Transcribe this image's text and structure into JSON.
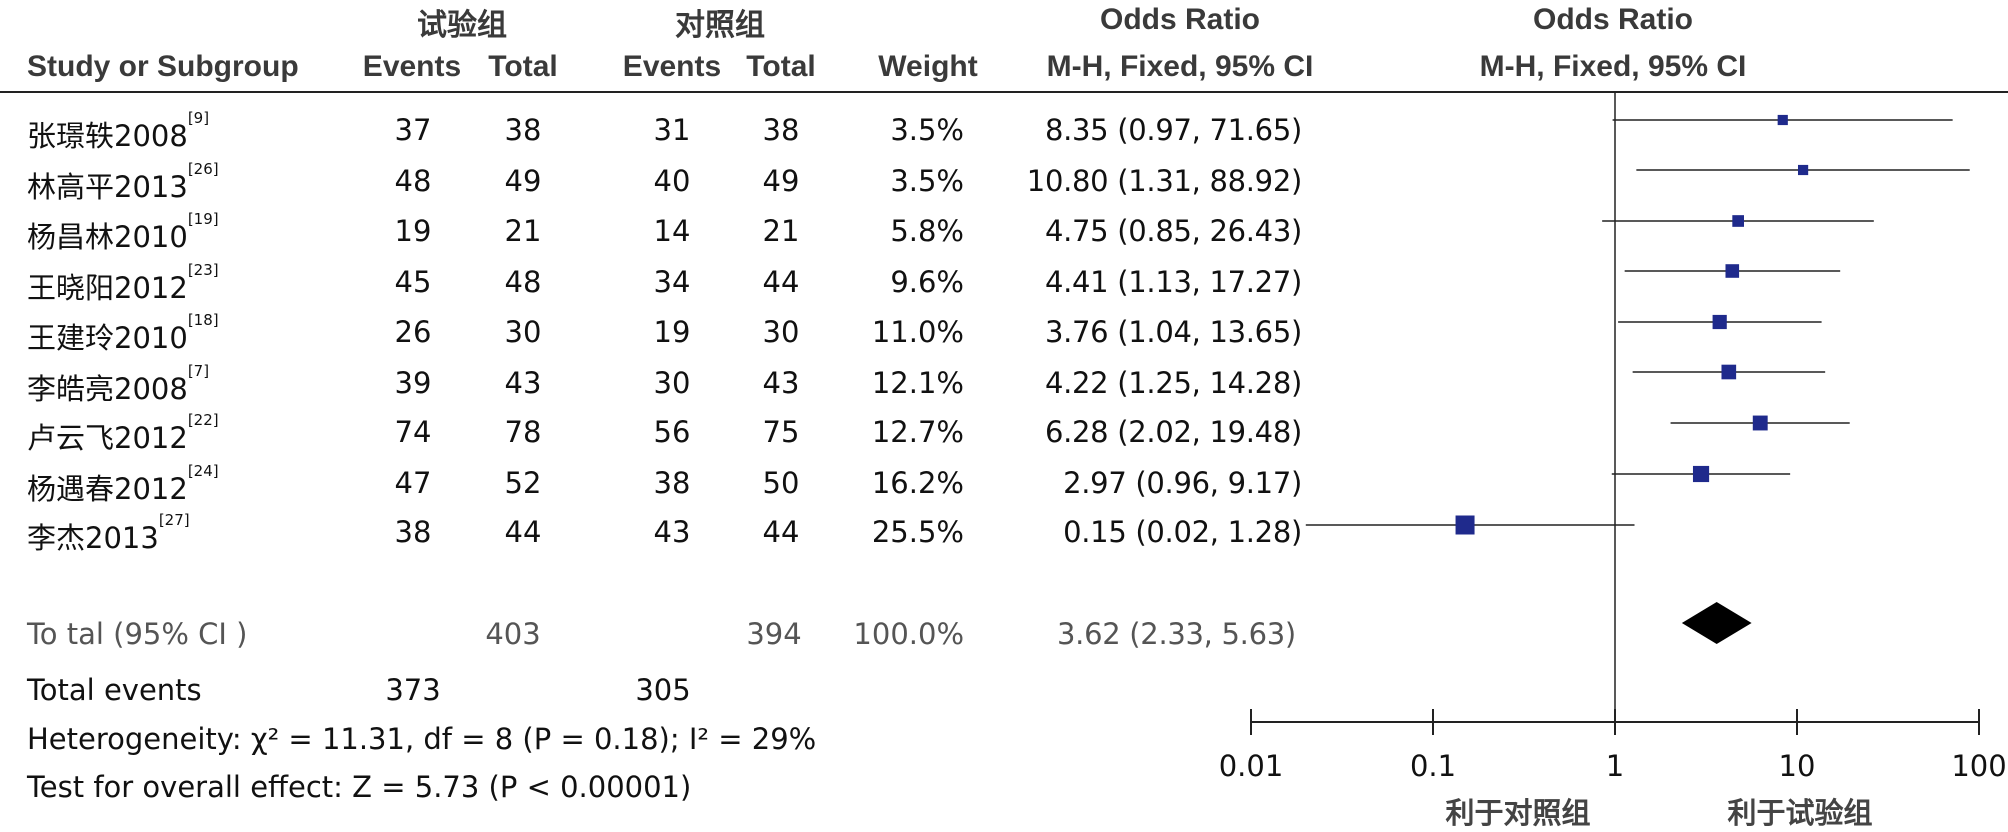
{
  "headers": {
    "group_exp": "试验组",
    "group_ctrl": "对照组",
    "study": "Study or Subgroup",
    "events": "Events",
    "total": "Total",
    "weight": "Weight",
    "or_title": "Odds Ratio",
    "or_method": "M-H, Fixed, 95% CI"
  },
  "studies": [
    {
      "name": "张璟轶2008",
      "ref": "[9]",
      "exp_events": "37",
      "exp_total": "38",
      "ctrl_events": "31",
      "ctrl_total": "38",
      "weight": "3.5%",
      "ci_text": "8.35 (0.97, 71.65)"
    },
    {
      "name": "林高平2013",
      "ref": "[26]",
      "exp_events": "48",
      "exp_total": "49",
      "ctrl_events": "40",
      "ctrl_total": "49",
      "weight": "3.5%",
      "ci_text": "10.80 (1.31, 88.92)"
    },
    {
      "name": "杨昌林2010",
      "ref": "[19]",
      "exp_events": "19",
      "exp_total": "21",
      "ctrl_events": "14",
      "ctrl_total": "21",
      "weight": "5.8%",
      "ci_text": "4.75 (0.85, 26.43)"
    },
    {
      "name": "王晓阳2012",
      "ref": "[23]",
      "exp_events": "45",
      "exp_total": "48",
      "ctrl_events": "34",
      "ctrl_total": "44",
      "weight": "9.6%",
      "ci_text": "4.41 (1.13, 17.27)"
    },
    {
      "name": "王建玲2010",
      "ref": "[18]",
      "exp_events": "26",
      "exp_total": "30",
      "ctrl_events": "19",
      "ctrl_total": "30",
      "weight": "11.0%",
      "ci_text": "3.76 (1.04, 13.65)"
    },
    {
      "name": "李皓亮2008",
      "ref": "[7]",
      "exp_events": "39",
      "exp_total": "43",
      "ctrl_events": "30",
      "ctrl_total": "43",
      "weight": "12.1%",
      "ci_text": "4.22 (1.25, 14.28)"
    },
    {
      "name": "卢云飞2012",
      "ref": "[22]",
      "exp_events": "74",
      "exp_total": "78",
      "ctrl_events": "56",
      "ctrl_total": "75",
      "weight": "12.7%",
      "ci_text": "6.28 (2.02, 19.48)"
    },
    {
      "name": "杨遇春2012",
      "ref": "[24]",
      "exp_events": "47",
      "exp_total": "52",
      "ctrl_events": "38",
      "ctrl_total": "50",
      "weight": "16.2%",
      "ci_text": "2.97 (0.96, 9.17)"
    },
    {
      "name": "李杰2013",
      "ref": "[27]",
      "exp_events": "38",
      "exp_total": "44",
      "ctrl_events": "43",
      "ctrl_total": "44",
      "weight": "25.5%",
      "ci_text": "0.15 (0.02, 1.28)"
    }
  ],
  "total": {
    "label": "To tal (95% CI )",
    "exp_total": "403",
    "ctrl_total": "394",
    "weight": "100.0%",
    "ci_text": "3.62 (2.33, 5.63)"
  },
  "total_events": {
    "label": "Total events",
    "exp": "373",
    "ctrl": "305"
  },
  "heterogeneity": "Heterogeneity: χ² = 11.31, df = 8 (P = 0.18); I² = 29%",
  "overall_effect": "Test for overall effect: Z = 5.73 (P < 0.00001)",
  "axis": {
    "favours_left": "利于对照组",
    "favours_right": "利于试验组"
  },
  "colors": {
    "marker": "#1f2a8c",
    "diamond": "#000000",
    "line": "#222222"
  },
  "chart_data": {
    "type": "scatter",
    "title": "Odds Ratio",
    "subtitle": "M-H, Fixed, 95% CI",
    "scale": "log10",
    "xlim": [
      0.01,
      100
    ],
    "xticks": [
      0.01,
      0.1,
      1,
      10,
      100
    ],
    "xtick_labels": [
      "0.01",
      "0.1",
      "1",
      "10",
      "100"
    ],
    "reference_line": 1,
    "series": [
      {
        "name": "",
        "points": [
          {
            "or": 8.35,
            "lower": 0.97,
            "upper": 71.65,
            "weight": 3.5
          },
          {
            "or": 10.8,
            "lower": 1.31,
            "upper": 88.92,
            "weight": 3.5
          },
          {
            "or": 4.75,
            "lower": 0.85,
            "upper": 26.43,
            "weight": 5.8
          },
          {
            "or": 4.41,
            "lower": 1.13,
            "upper": 17.27,
            "weight": 9.6
          },
          {
            "or": 3.76,
            "lower": 1.04,
            "upper": 13.65,
            "weight": 11.0
          },
          {
            "or": 4.22,
            "lower": 1.25,
            "upper": 14.28,
            "weight": 12.1
          },
          {
            "or": 6.28,
            "lower": 2.02,
            "upper": 19.48,
            "weight": 12.7
          },
          {
            "or": 2.97,
            "lower": 0.96,
            "upper": 9.17,
            "weight": 16.2
          },
          {
            "or": 0.15,
            "lower": 0.02,
            "upper": 1.28,
            "weight": 25.5
          }
        ]
      }
    ],
    "pooled": {
      "or": 3.62,
      "lower": 2.33,
      "upper": 5.63,
      "weight": 100.0
    }
  }
}
